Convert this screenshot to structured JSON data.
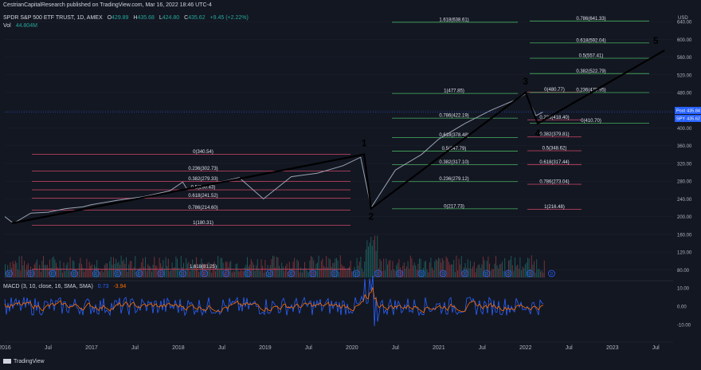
{
  "header": {
    "published": "CestrianCapitalResearch published on TradingView.com, Mar 16, 2022 18:46 UTC-4",
    "symbol": "SPDR S&P 500 ETF TRUST, 1D, AMEX",
    "ohlc": {
      "o_label": "O",
      "o": "429.89",
      "h_label": "H",
      "h": "435.68",
      "l_label": "L",
      "l": "424.80",
      "c_label": "C",
      "c": "435.62",
      "change": "+9.45 (+2.22%)"
    },
    "vol_label": "Vol",
    "vol_value": "44.804M"
  },
  "macd_label": {
    "title": "MACD (3, 10, close, 16, SMA, SMA)",
    "v1": "0.73",
    "v2": "-3.94"
  },
  "footer": {
    "brand": "TradingView"
  },
  "price_tags": [
    {
      "label": "Post",
      "value": "435.84",
      "color": "#2962ff"
    },
    {
      "label": "SPY",
      "value": "435.62",
      "color": "#2962ff"
    }
  ],
  "colors": {
    "background": "#131722",
    "fib_red": "#b53f5c",
    "fib_green": "#3f9b57",
    "wave_line": "#000000",
    "up_candle": "#26a69a",
    "down_candle": "#ef5350",
    "macd_line": "#2962ff",
    "signal_line": "#ff6d00",
    "dividend_marker": "#2962ff"
  },
  "chart_data": {
    "type": "line",
    "title": "SPDR S&P 500 ETF TRUST, 1D, AMEX",
    "currency": "USD",
    "price_axis": {
      "ticks": [
        80,
        120,
        160,
        200,
        240,
        280,
        320,
        360,
        400,
        440,
        480,
        520,
        560,
        600,
        640
      ],
      "ylim": [
        68,
        660
      ]
    },
    "time_axis": {
      "ticks": [
        "2016",
        "Jul",
        "2017",
        "Jul",
        "2018",
        "Jul",
        "2019",
        "Jul",
        "2020",
        "Jul",
        "2021",
        "Jul",
        "2022",
        "Jul",
        "2023",
        "Jul"
      ],
      "xlim": [
        2016.0,
        2023.7
      ]
    },
    "price_series": {
      "name": "SPY",
      "x": [
        2016.0,
        2016.1,
        2016.3,
        2016.5,
        2016.7,
        2016.9,
        2017.0,
        2017.3,
        2017.6,
        2017.9,
        2018.05,
        2018.1,
        2018.3,
        2018.7,
        2018.98,
        2019.3,
        2019.6,
        2019.9,
        2020.1,
        2020.22,
        2020.5,
        2020.8,
        2021.0,
        2021.3,
        2021.6,
        2021.9,
        2022.0,
        2022.12,
        2022.2
      ],
      "y": [
        200,
        185,
        208,
        210,
        218,
        222,
        227,
        237,
        245,
        258,
        278,
        262,
        270,
        288,
        240,
        290,
        298,
        315,
        334,
        220,
        305,
        340,
        375,
        410,
        440,
        465,
        477,
        428,
        436
      ]
    },
    "volume": {
      "visible": true
    },
    "macd": {
      "params": "3, 10, close, 16, SMA, SMA",
      "value": 0.73,
      "signal": -3.94,
      "ticks": [
        -10.0,
        0.0,
        10.0
      ]
    },
    "wave_labels": [
      {
        "label": "1",
        "x": 2020.14,
        "y": 340.5
      },
      {
        "label": "2",
        "x": 2020.22,
        "y": 218
      },
      {
        "label": "3",
        "x": 2022.0,
        "y": 480
      },
      {
        "label": "4",
        "x": 2022.14,
        "y": 410
      },
      {
        "label": "5",
        "x": 2023.5,
        "y": 575
      }
    ],
    "wave_path": {
      "x": [
        2016.08,
        2020.14,
        2020.22,
        2022.0,
        2022.14,
        2023.6
      ],
      "y": [
        185,
        340.5,
        218,
        480,
        410,
        575
      ]
    },
    "fib_retracement_1": {
      "color": "red",
      "levels": [
        {
          "text": "0(340.54)",
          "value": 340.54
        },
        {
          "text": "0.236(302.73)",
          "value": 302.73
        },
        {
          "text": "0.382(279.33)",
          "value": 279.33
        },
        {
          "text": "0.5(260.43)",
          "value": 260.43
        },
        {
          "text": "0.618(241.52)",
          "value": 241.52
        },
        {
          "text": "0.786(214.60)",
          "value": 214.6
        },
        {
          "text": "1(180.31)",
          "value": 180.31
        },
        {
          "text": "1.618(81.25)",
          "value": 81.25
        }
      ]
    },
    "fib_extension_green": {
      "color": "green",
      "levels": [
        {
          "text": "1.618(638.61)",
          "value": 638.61
        },
        {
          "text": "1(477.85)",
          "value": 477.85
        },
        {
          "text": "0.786(422.19)",
          "value": 422.19
        },
        {
          "text": "0.618(378.48)",
          "value": 378.48
        },
        {
          "text": "0.5(347.79)",
          "value": 347.79
        },
        {
          "text": "0.382(317.10)",
          "value": 317.1
        },
        {
          "text": "0.236(279.12)",
          "value": 279.12
        },
        {
          "text": "0(217.73)",
          "value": 217.73
        }
      ]
    },
    "fib_retracement_2": {
      "color": "red",
      "levels": [
        {
          "text": "0(480.77)",
          "value": 480.77
        },
        {
          "text": "0.236(418.40)",
          "value": 418.4
        },
        {
          "text": "0.382(379.81)",
          "value": 379.81
        },
        {
          "text": "0.5(348.62)",
          "value": 348.62
        },
        {
          "text": "0.618(317.44)",
          "value": 317.44
        },
        {
          "text": "0.786(273.04)",
          "value": 273.04
        },
        {
          "text": "1(216.48)",
          "value": 216.48
        }
      ]
    },
    "fib_extension_2": {
      "color": "green",
      "levels": [
        {
          "text": "0.786(641.33)",
          "value": 641.33
        },
        {
          "text": "0.618(592.04)",
          "value": 592.04
        },
        {
          "text": "0.5(557.41)",
          "value": 557.41
        },
        {
          "text": "0.382(522.79)",
          "value": 522.79
        },
        {
          "text": "0.236(479.95)",
          "value": 479.95
        },
        {
          "text": "0(410.70)",
          "value": 410.7
        }
      ]
    }
  }
}
